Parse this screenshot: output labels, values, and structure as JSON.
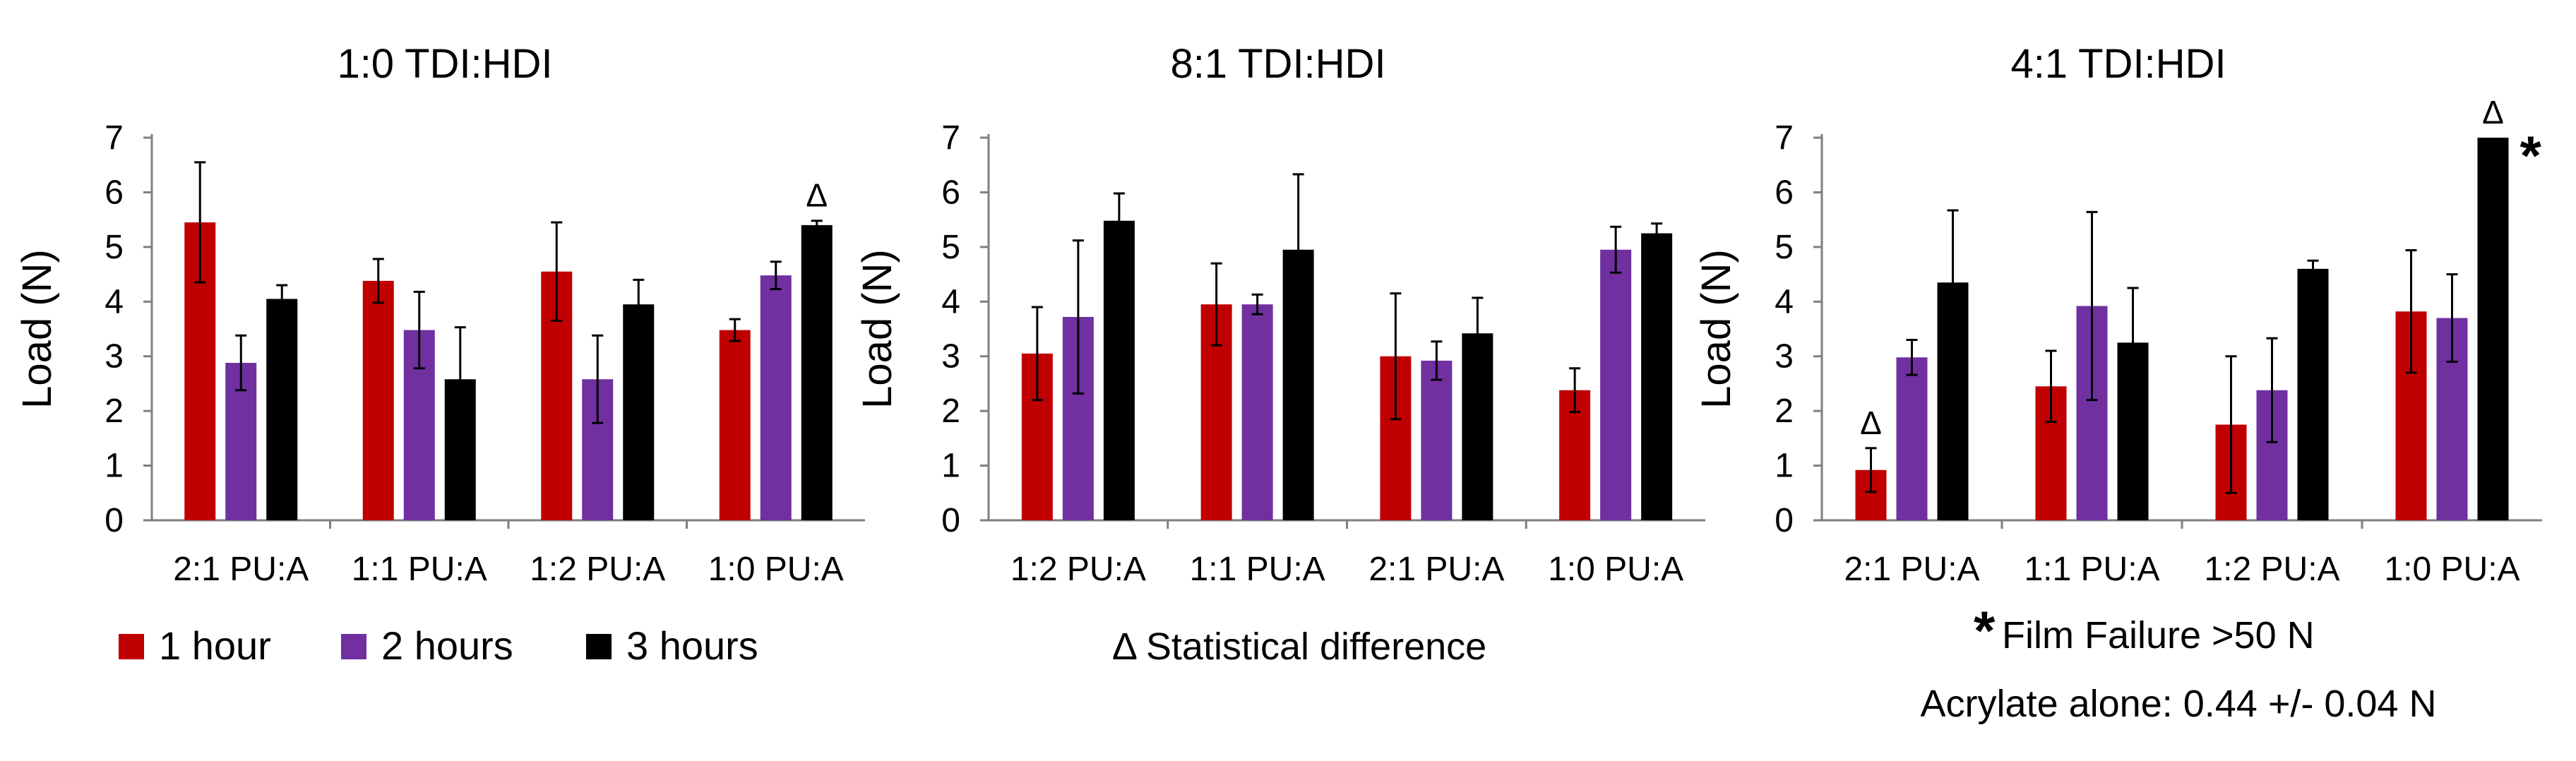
{
  "legend": {
    "items": [
      {
        "label": "1 hour",
        "color": "#C00000"
      },
      {
        "label": "2 hours",
        "color": "#7030A0"
      },
      {
        "label": "3 hours",
        "color": "#000000"
      }
    ]
  },
  "notes": {
    "delta": "Δ Statistical difference",
    "film_failure": "Film Failure >50 N",
    "star": "*",
    "acrylate": "Acrylate alone: 0.44 +/- 0.04 N"
  },
  "chart_data": [
    {
      "type": "bar",
      "title": "1:0 TDI:HDI",
      "ylabel": "Load (N)",
      "xlabel": "",
      "ylim": [
        0,
        7
      ],
      "yticks": [
        0,
        1,
        2,
        3,
        4,
        5,
        6,
        7
      ],
      "categories": [
        "2:1 PU:A",
        "1:1 PU:A",
        "1:2 PU:A",
        "1:0 PU:A"
      ],
      "series": [
        {
          "name": "1 hour",
          "values": [
            5.45,
            4.38,
            4.55,
            3.48
          ],
          "errors": [
            1.1,
            0.4,
            0.9,
            0.2
          ]
        },
        {
          "name": "2 hours",
          "values": [
            2.88,
            3.48,
            2.58,
            4.48
          ],
          "errors": [
            0.5,
            0.7,
            0.8,
            0.25
          ]
        },
        {
          "name": "3 hours",
          "values": [
            4.05,
            2.58,
            3.95,
            5.4
          ],
          "errors": [
            0.25,
            0.95,
            0.45,
            0.08
          ]
        }
      ],
      "annotations": [
        {
          "text": "Δ",
          "category": 3,
          "series": 2
        }
      ]
    },
    {
      "type": "bar",
      "title": "8:1 TDI:HDI",
      "ylabel": "Load (N)",
      "xlabel": "",
      "ylim": [
        0,
        7
      ],
      "yticks": [
        0,
        1,
        2,
        3,
        4,
        5,
        6,
        7
      ],
      "categories": [
        "1:2 PU:A",
        "1:1 PU:A",
        "2:1 PU:A",
        "1:0 PU:A"
      ],
      "series": [
        {
          "name": "1 hour",
          "values": [
            3.05,
            3.95,
            3.0,
            2.38
          ],
          "errors": [
            0.85,
            0.75,
            1.15,
            0.4
          ]
        },
        {
          "name": "2 hours",
          "values": [
            3.72,
            3.95,
            2.92,
            4.95
          ],
          "errors": [
            1.4,
            0.18,
            0.35,
            0.42
          ]
        },
        {
          "name": "3 hours",
          "values": [
            5.48,
            4.95,
            3.42,
            5.25
          ],
          "errors": [
            0.5,
            1.38,
            0.65,
            0.18
          ]
        }
      ],
      "annotations": []
    },
    {
      "type": "bar",
      "title": "4:1 TDI:HDI",
      "ylabel": "Load (N)",
      "xlabel": "",
      "ylim": [
        0,
        7
      ],
      "yticks": [
        0,
        1,
        2,
        3,
        4,
        5,
        6,
        7
      ],
      "categories": [
        "2:1 PU:A",
        "1:1 PU:A",
        "1:2 PU:A",
        "1:0 PU:A"
      ],
      "series": [
        {
          "name": "1 hour",
          "values": [
            0.92,
            2.45,
            1.75,
            3.82
          ],
          "errors": [
            0.4,
            0.65,
            1.25,
            1.12
          ]
        },
        {
          "name": "2 hours",
          "values": [
            2.98,
            3.92,
            2.38,
            3.7
          ],
          "errors": [
            0.32,
            1.72,
            0.95,
            0.8
          ]
        },
        {
          "name": "3 hours",
          "values": [
            4.35,
            3.25,
            4.6,
            7.0
          ],
          "errors": [
            1.32,
            1.0,
            0.15,
            0.0
          ]
        }
      ],
      "annotations": [
        {
          "text": "Δ",
          "category": 0,
          "series": 0
        },
        {
          "text": "Δ",
          "category": 3,
          "series": 2
        },
        {
          "text": "*",
          "category": 3,
          "series": 2
        }
      ]
    }
  ]
}
